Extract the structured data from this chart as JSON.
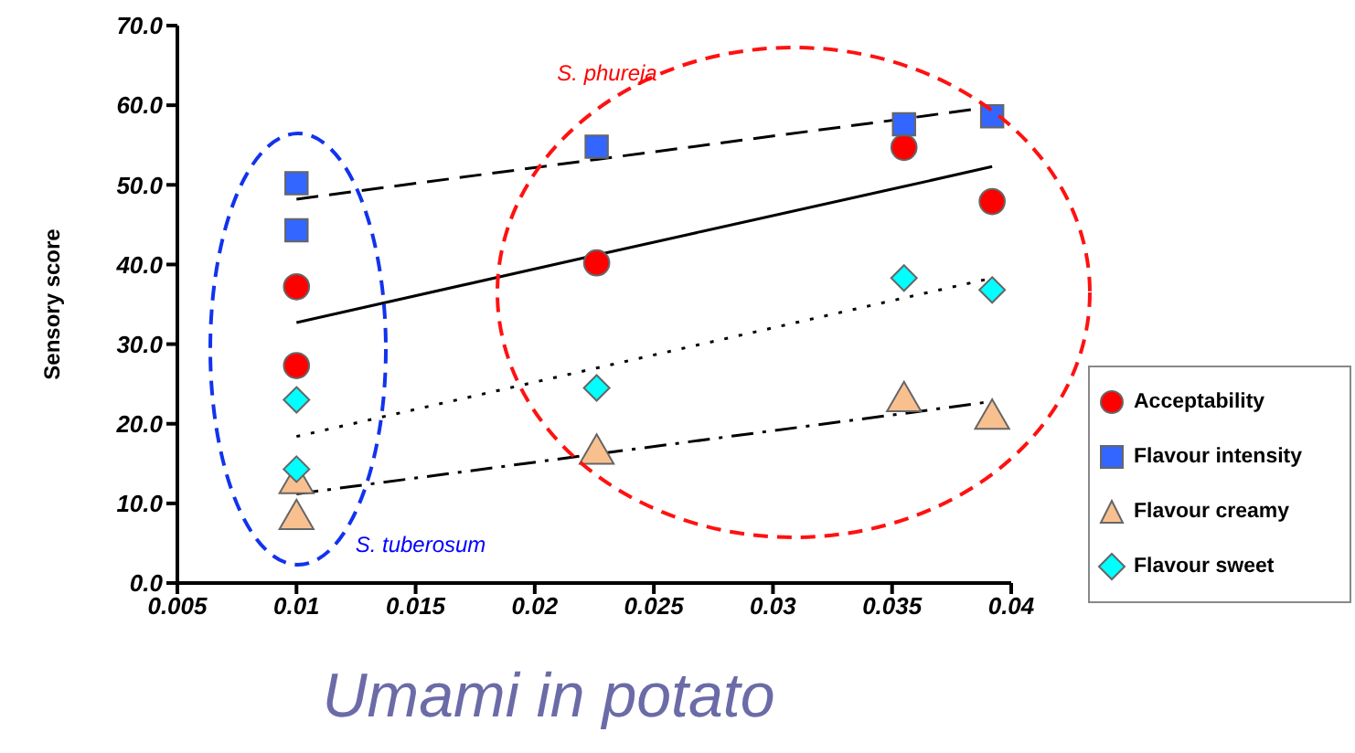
{
  "chart_data": {
    "type": "scatter",
    "title": "Umami in potato",
    "ylabel": "Sensory score",
    "x": [
      0.01,
      0.01,
      0.0226,
      0.0355,
      0.0392
    ],
    "xlim": [
      0.005,
      0.04
    ],
    "xticks": [
      0.005,
      0.01,
      0.015,
      0.02,
      0.025,
      0.03,
      0.035,
      0.04
    ],
    "ylim": [
      0,
      70
    ],
    "yticks": [
      {
        "value": 0,
        "label": "0.0"
      },
      {
        "value": 10,
        "label": "10.0"
      },
      {
        "value": 20,
        "label": "20.0"
      },
      {
        "value": 30,
        "label": "30.0"
      },
      {
        "value": 40,
        "label": "40.0"
      },
      {
        "value": 50,
        "label": "50.0"
      },
      {
        "value": 60,
        "label": "60.0"
      },
      {
        "value": 70,
        "label": "70.0"
      }
    ],
    "legend": "right",
    "annotations": [
      "S. phureja",
      "S. tuberosum"
    ],
    "series": [
      {
        "name": "Acceptability",
        "color": "#ff0000",
        "marker": "circle",
        "values": [
          37.2,
          27.3,
          40.2,
          54.7,
          47.9
        ]
      },
      {
        "name": "Flavour intensity",
        "color": "#3366ff",
        "marker": "square",
        "values": [
          50.2,
          44.3,
          54.8,
          57.6,
          58.6
        ]
      },
      {
        "name": "Flavour creamy",
        "color": "#f9c08f",
        "marker": "triangle",
        "values": [
          12.5,
          8.0,
          16.2,
          22.8,
          20.6
        ]
      },
      {
        "name": "Flavour sweet",
        "color": "#00ffff",
        "marker": "diamond",
        "values": [
          23.0,
          14.3,
          24.5,
          38.3,
          36.8
        ]
      },
      {
        "type": "line",
        "color": "#000000",
        "line_style": "solid",
        "values": [
          32.7,
          32.7,
          41.2,
          49.8,
          52.3
        ]
      },
      {
        "type": "line",
        "color": "#000000",
        "line_style": "dashed",
        "values": [
          48.2,
          48.2,
          53.2,
          58.3,
          59.8
        ]
      },
      {
        "type": "line",
        "color": "#000000",
        "line_style": "dashdot",
        "values": [
          11.2,
          11.2,
          16.2,
          21.3,
          22.8
        ]
      },
      {
        "type": "line",
        "color": "#000000",
        "line_style": "dotted",
        "values": [
          18.4,
          18.4,
          27.0,
          35.8,
          38.3
        ]
      }
    ]
  }
}
